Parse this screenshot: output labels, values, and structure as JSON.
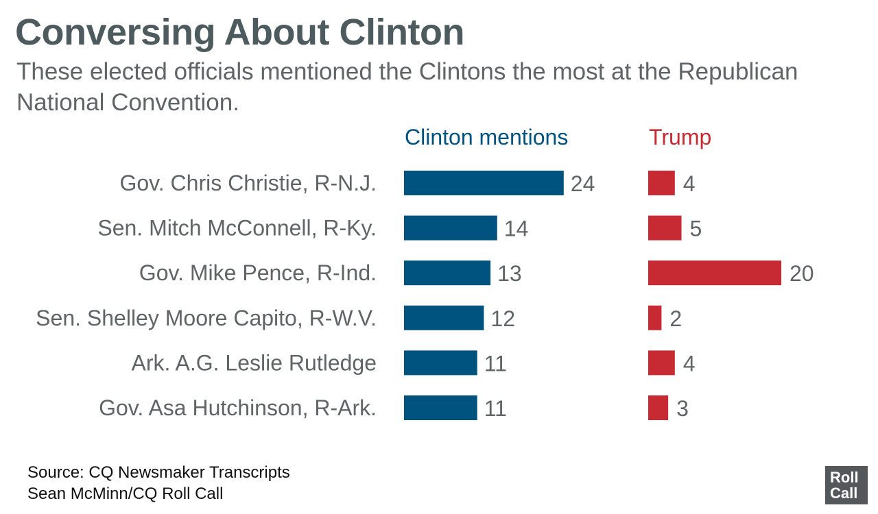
{
  "header": {
    "title": "Conversing About Clinton",
    "subtitle": "These elected officials mentioned the Clintons the most at the Republican National Convention."
  },
  "colors": {
    "clinton": "#00527f",
    "trump": "#c72a33"
  },
  "chart_data": {
    "type": "bar",
    "orientation": "horizontal",
    "categories": [
      "Gov. Chris Christie, R-N.J.",
      "Sen. Mitch McConnell, R-Ky.",
      "Gov. Mike Pence, R-Ind.",
      "Sen. Shelley Moore Capito, R-W.V.",
      "Ark. A.G. Leslie Rutledge",
      "Gov. Asa Hutchinson, R-Ark."
    ],
    "series": [
      {
        "name": "Clinton mentions",
        "values": [
          24,
          14,
          13,
          12,
          11,
          11
        ]
      },
      {
        "name": "Trump",
        "values": [
          4,
          5,
          20,
          2,
          4,
          3
        ]
      }
    ],
    "title": "Conversing About Clinton",
    "xlabel": "",
    "ylabel": "",
    "grid": false
  },
  "footer": {
    "source_line": "Source: CQ Newsmaker Transcripts",
    "credit_line": "Sean McMinn/CQ Roll Call",
    "logo_line1": "Roll",
    "logo_line2": "Call"
  }
}
